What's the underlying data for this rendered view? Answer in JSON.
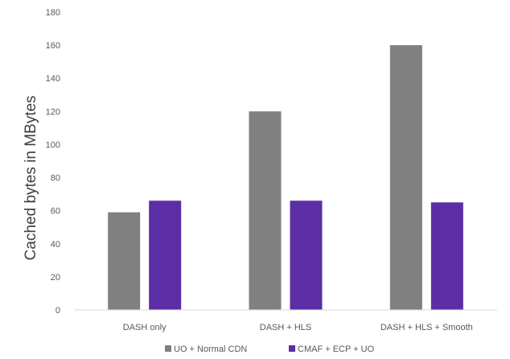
{
  "chart_data": {
    "type": "bar",
    "title": "",
    "xlabel": "",
    "ylabel": "Cached bytes in MBytes",
    "ylim": [
      0,
      180
    ],
    "yticks": [
      0,
      20,
      40,
      60,
      80,
      100,
      120,
      140,
      160,
      180
    ],
    "grid": false,
    "legend_position": "bottom",
    "categories": [
      "DASH only",
      "DASH + HLS",
      "DASH + HLS + Smooth"
    ],
    "series": [
      {
        "name": "UO + Normal CDN",
        "color": "#808080",
        "values": [
          59,
          120,
          160
        ]
      },
      {
        "name": "CMAF + ECP + UO",
        "color": "#5b2ea6",
        "values": [
          66,
          66,
          65
        ]
      }
    ]
  }
}
